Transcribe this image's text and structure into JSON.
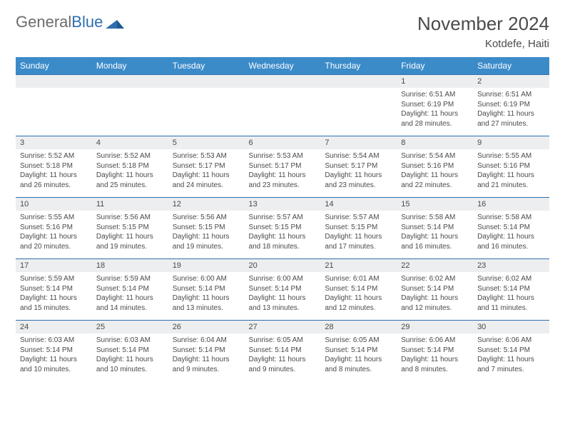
{
  "brand": {
    "part1": "General",
    "part2": "Blue"
  },
  "title": "November 2024",
  "location": "Kotdefe, Haiti",
  "colors": {
    "header_bg": "#3b8bc9",
    "header_text": "#ffffff",
    "daynum_bg": "#eceeef",
    "rule": "#2f6fb0",
    "text": "#4a4a4a",
    "logo_gray": "#6b6b6b",
    "logo_blue": "#2f6fb0"
  },
  "dow": [
    "Sunday",
    "Monday",
    "Tuesday",
    "Wednesday",
    "Thursday",
    "Friday",
    "Saturday"
  ],
  "weeks": [
    {
      "nums": [
        "",
        "",
        "",
        "",
        "",
        "1",
        "2"
      ],
      "cells": [
        null,
        null,
        null,
        null,
        null,
        {
          "sunrise": "Sunrise: 6:51 AM",
          "sunset": "Sunset: 6:19 PM",
          "day1": "Daylight: 11 hours",
          "day2": "and 28 minutes."
        },
        {
          "sunrise": "Sunrise: 6:51 AM",
          "sunset": "Sunset: 6:19 PM",
          "day1": "Daylight: 11 hours",
          "day2": "and 27 minutes."
        }
      ]
    },
    {
      "nums": [
        "3",
        "4",
        "5",
        "6",
        "7",
        "8",
        "9"
      ],
      "cells": [
        {
          "sunrise": "Sunrise: 5:52 AM",
          "sunset": "Sunset: 5:18 PM",
          "day1": "Daylight: 11 hours",
          "day2": "and 26 minutes."
        },
        {
          "sunrise": "Sunrise: 5:52 AM",
          "sunset": "Sunset: 5:18 PM",
          "day1": "Daylight: 11 hours",
          "day2": "and 25 minutes."
        },
        {
          "sunrise": "Sunrise: 5:53 AM",
          "sunset": "Sunset: 5:17 PM",
          "day1": "Daylight: 11 hours",
          "day2": "and 24 minutes."
        },
        {
          "sunrise": "Sunrise: 5:53 AM",
          "sunset": "Sunset: 5:17 PM",
          "day1": "Daylight: 11 hours",
          "day2": "and 23 minutes."
        },
        {
          "sunrise": "Sunrise: 5:54 AM",
          "sunset": "Sunset: 5:17 PM",
          "day1": "Daylight: 11 hours",
          "day2": "and 23 minutes."
        },
        {
          "sunrise": "Sunrise: 5:54 AM",
          "sunset": "Sunset: 5:16 PM",
          "day1": "Daylight: 11 hours",
          "day2": "and 22 minutes."
        },
        {
          "sunrise": "Sunrise: 5:55 AM",
          "sunset": "Sunset: 5:16 PM",
          "day1": "Daylight: 11 hours",
          "day2": "and 21 minutes."
        }
      ]
    },
    {
      "nums": [
        "10",
        "11",
        "12",
        "13",
        "14",
        "15",
        "16"
      ],
      "cells": [
        {
          "sunrise": "Sunrise: 5:55 AM",
          "sunset": "Sunset: 5:16 PM",
          "day1": "Daylight: 11 hours",
          "day2": "and 20 minutes."
        },
        {
          "sunrise": "Sunrise: 5:56 AM",
          "sunset": "Sunset: 5:15 PM",
          "day1": "Daylight: 11 hours",
          "day2": "and 19 minutes."
        },
        {
          "sunrise": "Sunrise: 5:56 AM",
          "sunset": "Sunset: 5:15 PM",
          "day1": "Daylight: 11 hours",
          "day2": "and 19 minutes."
        },
        {
          "sunrise": "Sunrise: 5:57 AM",
          "sunset": "Sunset: 5:15 PM",
          "day1": "Daylight: 11 hours",
          "day2": "and 18 minutes."
        },
        {
          "sunrise": "Sunrise: 5:57 AM",
          "sunset": "Sunset: 5:15 PM",
          "day1": "Daylight: 11 hours",
          "day2": "and 17 minutes."
        },
        {
          "sunrise": "Sunrise: 5:58 AM",
          "sunset": "Sunset: 5:14 PM",
          "day1": "Daylight: 11 hours",
          "day2": "and 16 minutes."
        },
        {
          "sunrise": "Sunrise: 5:58 AM",
          "sunset": "Sunset: 5:14 PM",
          "day1": "Daylight: 11 hours",
          "day2": "and 16 minutes."
        }
      ]
    },
    {
      "nums": [
        "17",
        "18",
        "19",
        "20",
        "21",
        "22",
        "23"
      ],
      "cells": [
        {
          "sunrise": "Sunrise: 5:59 AM",
          "sunset": "Sunset: 5:14 PM",
          "day1": "Daylight: 11 hours",
          "day2": "and 15 minutes."
        },
        {
          "sunrise": "Sunrise: 5:59 AM",
          "sunset": "Sunset: 5:14 PM",
          "day1": "Daylight: 11 hours",
          "day2": "and 14 minutes."
        },
        {
          "sunrise": "Sunrise: 6:00 AM",
          "sunset": "Sunset: 5:14 PM",
          "day1": "Daylight: 11 hours",
          "day2": "and 13 minutes."
        },
        {
          "sunrise": "Sunrise: 6:00 AM",
          "sunset": "Sunset: 5:14 PM",
          "day1": "Daylight: 11 hours",
          "day2": "and 13 minutes."
        },
        {
          "sunrise": "Sunrise: 6:01 AM",
          "sunset": "Sunset: 5:14 PM",
          "day1": "Daylight: 11 hours",
          "day2": "and 12 minutes."
        },
        {
          "sunrise": "Sunrise: 6:02 AM",
          "sunset": "Sunset: 5:14 PM",
          "day1": "Daylight: 11 hours",
          "day2": "and 12 minutes."
        },
        {
          "sunrise": "Sunrise: 6:02 AM",
          "sunset": "Sunset: 5:14 PM",
          "day1": "Daylight: 11 hours",
          "day2": "and 11 minutes."
        }
      ]
    },
    {
      "nums": [
        "24",
        "25",
        "26",
        "27",
        "28",
        "29",
        "30"
      ],
      "cells": [
        {
          "sunrise": "Sunrise: 6:03 AM",
          "sunset": "Sunset: 5:14 PM",
          "day1": "Daylight: 11 hours",
          "day2": "and 10 minutes."
        },
        {
          "sunrise": "Sunrise: 6:03 AM",
          "sunset": "Sunset: 5:14 PM",
          "day1": "Daylight: 11 hours",
          "day2": "and 10 minutes."
        },
        {
          "sunrise": "Sunrise: 6:04 AM",
          "sunset": "Sunset: 5:14 PM",
          "day1": "Daylight: 11 hours",
          "day2": "and 9 minutes."
        },
        {
          "sunrise": "Sunrise: 6:05 AM",
          "sunset": "Sunset: 5:14 PM",
          "day1": "Daylight: 11 hours",
          "day2": "and 9 minutes."
        },
        {
          "sunrise": "Sunrise: 6:05 AM",
          "sunset": "Sunset: 5:14 PM",
          "day1": "Daylight: 11 hours",
          "day2": "and 8 minutes."
        },
        {
          "sunrise": "Sunrise: 6:06 AM",
          "sunset": "Sunset: 5:14 PM",
          "day1": "Daylight: 11 hours",
          "day2": "and 8 minutes."
        },
        {
          "sunrise": "Sunrise: 6:06 AM",
          "sunset": "Sunset: 5:14 PM",
          "day1": "Daylight: 11 hours",
          "day2": "and 7 minutes."
        }
      ]
    }
  ]
}
